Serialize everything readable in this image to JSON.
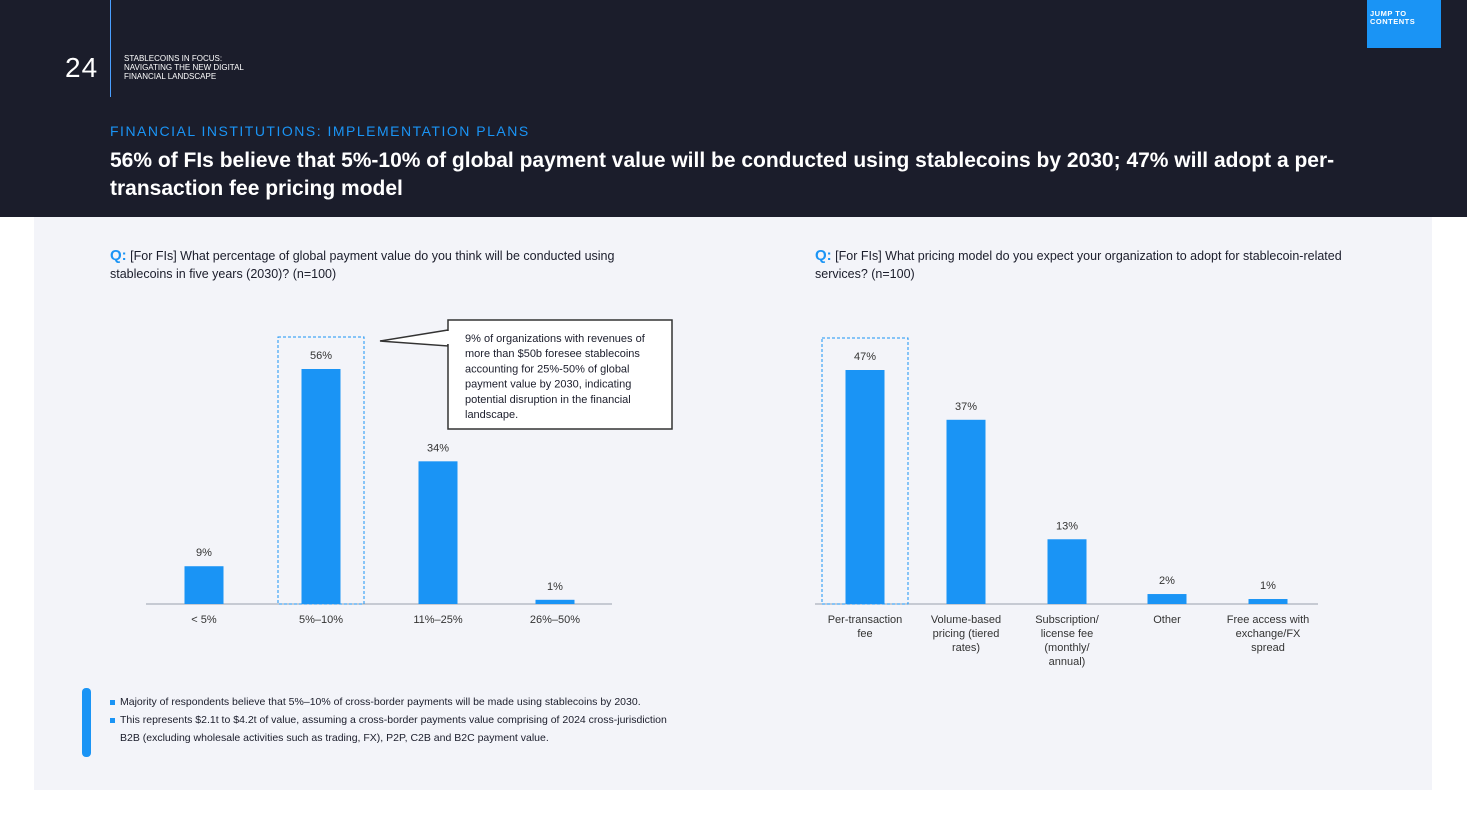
{
  "header": {
    "page_number": "24",
    "doc_title_lines": [
      "STABLECOINS IN FOCUS:",
      "NAVIGATING THE NEW DIGITAL",
      "FINANCIAL LANDSCAPE"
    ],
    "jump_button_lines": [
      "JUMP TO",
      "CONTENTS"
    ],
    "eyebrow": "FINANCIAL INSTITUTIONS: IMPLEMENTATION PLANS",
    "headline": "56% of FIs believe that 5%-10% of global payment value will be conducted using stablecoins by 2030; 47% will adopt a per-transaction fee pricing model"
  },
  "colors": {
    "accent": "#1a94f5",
    "dark_bg": "#1b1d2b",
    "panel_bg": "#f3f4f9"
  },
  "left_question": {
    "q": "Q:",
    "text": "[For FIs] What percentage of global payment value do you think will be conducted using stablecoins in five years (2030)? (n=100)"
  },
  "right_question": {
    "q": "Q:",
    "text": "[For FIs] What pricing model do you expect your organization to adopt for stablecoin-related services? (n=100)"
  },
  "callout_lines": [
    "9% of organizations with revenues of",
    "more than $50b foresee stablecoins",
    "accounting for 25%-50% of global",
    "payment value by 2030, indicating",
    "potential disruption in the financial",
    "landscape."
  ],
  "chart_data": [
    {
      "type": "bar",
      "categories": [
        "< 5%",
        "5%–10%",
        "11%–25%",
        "26%–50%"
      ],
      "values": [
        9,
        56,
        34,
        1
      ],
      "value_labels": [
        "9%",
        "56%",
        "34%",
        "1%"
      ],
      "highlight_index": 1,
      "ylim": [
        0,
        60
      ]
    },
    {
      "type": "bar",
      "categories": [
        [
          "Per-transaction",
          "fee"
        ],
        [
          "Volume-based",
          "pricing (tiered",
          "rates)"
        ],
        [
          "Subscription/",
          "license fee",
          "(monthly/",
          "annual)"
        ],
        [
          "Other"
        ],
        [
          "Free access with",
          "exchange/FX",
          "spread"
        ]
      ],
      "values": [
        47,
        37,
        13,
        2,
        1
      ],
      "value_labels": [
        "47%",
        "37%",
        "13%",
        "2%",
        "1%"
      ],
      "highlight_index": 0,
      "ylim": [
        0,
        50
      ]
    }
  ],
  "notes": [
    "Majority of respondents believe that 5%–10% of cross-border payments will be made using stablecoins by 2030.",
    "This represents $2.1t to $4.2t of value, assuming a cross-border payments value comprising of 2024 cross-jurisdiction B2B (excluding wholesale activities such as trading, FX), P2P, C2B and B2C payment value."
  ]
}
